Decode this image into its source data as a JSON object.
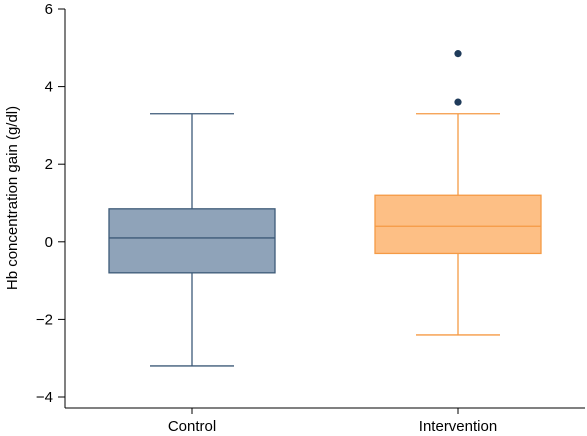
{
  "chart_data": {
    "type": "box",
    "title": "",
    "xlabel": "",
    "ylabel": "Hb concentration gain (g/dl)",
    "ylim": [
      -4.3,
      6
    ],
    "yticks": [
      6,
      4,
      2,
      0,
      -2,
      -4
    ],
    "ytick_labels": [
      "6",
      "4",
      "2",
      "0",
      "−2",
      "−4"
    ],
    "grid": false,
    "categories": [
      "Control",
      "Intervention"
    ],
    "boxes": [
      {
        "name": "Control",
        "whisker_low": -3.2,
        "q1": -0.8,
        "median": 0.1,
        "q3": 0.85,
        "whisker_high": 3.3,
        "outliers": [],
        "fill": "#8fa3b9",
        "stroke": "#3d5a78"
      },
      {
        "name": "Intervention",
        "whisker_low": -2.4,
        "q1": -0.3,
        "median": 0.4,
        "q3": 1.2,
        "whisker_high": 3.3,
        "outliers": [
          3.6,
          4.85
        ],
        "fill": "#fdbf85",
        "stroke": "#f59a45"
      }
    ],
    "outlier_color": "#1f3b5a"
  }
}
